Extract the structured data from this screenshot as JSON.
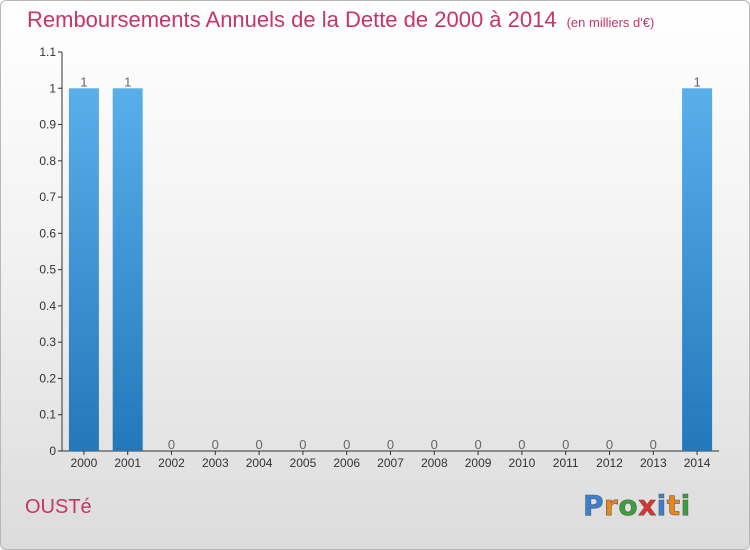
{
  "title": "Remboursements Annuels de la Dette de 2000 à 2014",
  "unit": "(en milliers d'€)",
  "commune": "OUSTé",
  "logo": {
    "text": "Proxiti",
    "colors": [
      "#3a7fd0",
      "#e8861a",
      "#3aa03a",
      "#e03030",
      "#3a7fd0",
      "#e8861a",
      "#3aa03a"
    ]
  },
  "chart_data": {
    "type": "bar",
    "categories": [
      "2000",
      "2001",
      "2002",
      "2003",
      "2004",
      "2005",
      "2006",
      "2007",
      "2008",
      "2009",
      "2010",
      "2011",
      "2012",
      "2013",
      "2014"
    ],
    "values": [
      1,
      1,
      0,
      0,
      0,
      0,
      0,
      0,
      0,
      0,
      0,
      0,
      0,
      0,
      1
    ],
    "data_labels": [
      "1",
      "1",
      "0",
      "0",
      "0",
      "0",
      "0",
      "0",
      "0",
      "0",
      "0",
      "0",
      "0",
      "0",
      "1"
    ],
    "y_ticks": [
      "0",
      "0.1",
      "0.2",
      "0.3",
      "0.4",
      "0.5",
      "0.6",
      "0.7",
      "0.8",
      "0.9",
      "1",
      "1.1"
    ],
    "ylim": [
      0,
      1.1
    ],
    "bar_color": "#3d8fd6",
    "grid": false
  }
}
